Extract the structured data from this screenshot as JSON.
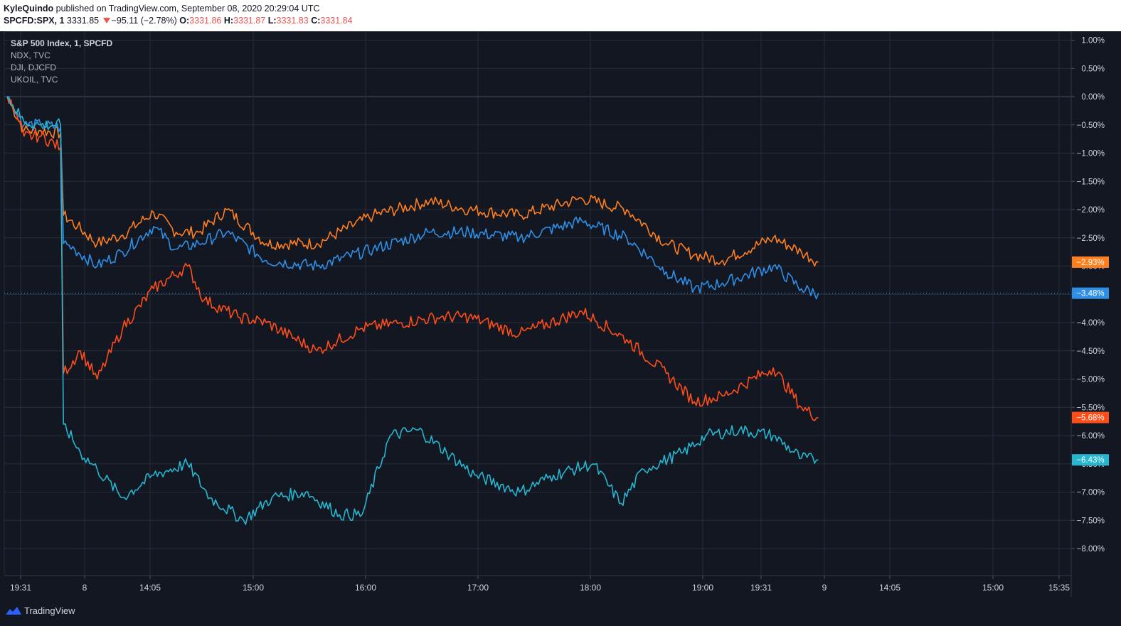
{
  "header": {
    "author": "KyleQuindo",
    "published_text": "published on TradingView.com, September 08, 2020 20:29:04 UTC",
    "symbol": "SPCFD:SPX, 1",
    "last": "3331.85",
    "change": "−95.11 (−2.78%)",
    "o_label": "O:",
    "o_value": "3331.86",
    "h_label": "H:",
    "h_value": "3331.87",
    "l_label": "L:",
    "l_value": "3331.83",
    "c_label": "C:",
    "c_value": "3331.84"
  },
  "legend": [
    "S&P 500 Index, 1, SPCFD",
    "NDX, TVC",
    "DJI, DJCFD",
    "UKOIL, TVC"
  ],
  "footer": {
    "brand": "TradingView"
  },
  "colors": {
    "background": "#131722",
    "grid": "#2a2e39",
    "axis_text": "#d1d4dc",
    "spx": "#2f8fe6",
    "ndx": "#ff7f1f",
    "dji": "#ff4d1a",
    "ukoil": "#26b6cf"
  },
  "chart_data": {
    "type": "line",
    "title": "S&P 500 Index, 1, SPCFD",
    "x_ticks": [
      "19:31",
      "8",
      "14:05",
      "15:00",
      "16:00",
      "17:00",
      "18:00",
      "19:00",
      "19:31",
      "9",
      "14:05",
      "15:00",
      "15:35"
    ],
    "y_ticks": [
      "1.00%",
      "0.50%",
      "0.00%",
      "−0.50%",
      "−1.00%",
      "−1.50%",
      "−2.00%",
      "−2.50%",
      "−3.00%",
      "−3.50%",
      "−4.00%",
      "−4.50%",
      "−5.00%",
      "−5.50%",
      "−6.00%",
      "−6.50%",
      "−7.00%",
      "−7.50%",
      "−8.00%"
    ],
    "ylim": [
      -8.35,
      1.3
    ],
    "grid": true,
    "series": [
      {
        "name": "NDX, TVC",
        "color_key": "ndx",
        "last_label": "−2.93%",
        "points": [
          [
            0,
            0
          ],
          [
            0.1,
            -0.2
          ],
          [
            0.3,
            -0.6
          ],
          [
            0.6,
            -0.6
          ],
          [
            0.95,
            -0.65
          ],
          [
            1.0,
            -2.1
          ],
          [
            1.25,
            -2.3
          ],
          [
            1.6,
            -2.6
          ],
          [
            2.05,
            -2.45
          ],
          [
            2.6,
            -2.05
          ],
          [
            3.0,
            -2.4
          ],
          [
            3.4,
            -2.4
          ],
          [
            3.9,
            -2.0
          ],
          [
            4.6,
            -2.6
          ],
          [
            5.5,
            -2.6
          ],
          [
            6.5,
            -2.1
          ],
          [
            7.5,
            -1.85
          ],
          [
            8.2,
            -2.0
          ],
          [
            9.1,
            -2.1
          ],
          [
            10.2,
            -1.8
          ],
          [
            11.0,
            -2.0
          ],
          [
            11.7,
            -2.6
          ],
          [
            12.2,
            -2.8
          ],
          [
            12.7,
            -2.9
          ],
          [
            13.6,
            -2.5
          ],
          [
            14.1,
            -2.75
          ],
          [
            14.4,
            -2.93
          ]
        ]
      },
      {
        "name": "S&P 500 Index, 1, SPCFD",
        "color_key": "spx",
        "last_label": "−3.48%",
        "points": [
          [
            0,
            0
          ],
          [
            0.1,
            -0.15
          ],
          [
            0.3,
            -0.5
          ],
          [
            0.6,
            -0.5
          ],
          [
            0.95,
            -0.55
          ],
          [
            1.0,
            -2.6
          ],
          [
            1.2,
            -2.7
          ],
          [
            1.6,
            -3.0
          ],
          [
            2.05,
            -2.75
          ],
          [
            2.6,
            -2.3
          ],
          [
            3.0,
            -2.7
          ],
          [
            3.4,
            -2.6
          ],
          [
            3.9,
            -2.4
          ],
          [
            4.6,
            -2.9
          ],
          [
            5.5,
            -3.0
          ],
          [
            6.5,
            -2.7
          ],
          [
            7.5,
            -2.4
          ],
          [
            8.2,
            -2.4
          ],
          [
            9.1,
            -2.5
          ],
          [
            10.2,
            -2.2
          ],
          [
            11.0,
            -2.5
          ],
          [
            11.7,
            -3.1
          ],
          [
            12.2,
            -3.4
          ],
          [
            12.7,
            -3.3
          ],
          [
            13.6,
            -3.0
          ],
          [
            14.1,
            -3.4
          ],
          [
            14.4,
            -3.48
          ]
        ]
      },
      {
        "name": "DJI, DJCFD",
        "color_key": "dji",
        "last_label": "−5.68%",
        "points": [
          [
            0,
            0
          ],
          [
            0.1,
            -0.2
          ],
          [
            0.3,
            -0.7
          ],
          [
            0.6,
            -0.7
          ],
          [
            0.95,
            -0.9
          ],
          [
            1.0,
            -4.9
          ],
          [
            1.3,
            -4.5
          ],
          [
            1.6,
            -5.0
          ],
          [
            2.05,
            -4.1
          ],
          [
            2.6,
            -3.4
          ],
          [
            3.2,
            -3.0
          ],
          [
            3.5,
            -3.6
          ],
          [
            4.1,
            -3.9
          ],
          [
            4.6,
            -4.0
          ],
          [
            5.5,
            -4.5
          ],
          [
            6.3,
            -4.1
          ],
          [
            7.0,
            -4.0
          ],
          [
            7.7,
            -3.9
          ],
          [
            8.2,
            -3.9
          ],
          [
            9.1,
            -4.2
          ],
          [
            10.2,
            -3.8
          ],
          [
            11.0,
            -4.3
          ],
          [
            11.7,
            -4.9
          ],
          [
            12.2,
            -5.4
          ],
          [
            12.7,
            -5.3
          ],
          [
            13.6,
            -4.8
          ],
          [
            14.1,
            -5.5
          ],
          [
            14.4,
            -5.68
          ]
        ]
      },
      {
        "name": "UKOIL, TVC",
        "color_key": "ukoil",
        "last_label": "−6.43%",
        "points": [
          [
            0,
            0
          ],
          [
            0.1,
            -0.15
          ],
          [
            0.3,
            -0.45
          ],
          [
            0.6,
            -0.5
          ],
          [
            0.95,
            -0.5
          ],
          [
            1.0,
            -5.8
          ],
          [
            1.3,
            -6.3
          ],
          [
            1.6,
            -6.6
          ],
          [
            2.05,
            -7.1
          ],
          [
            2.6,
            -6.7
          ],
          [
            3.2,
            -6.5
          ],
          [
            3.6,
            -7.1
          ],
          [
            4.2,
            -7.5
          ],
          [
            4.7,
            -7.1
          ],
          [
            5.3,
            -7.0
          ],
          [
            5.9,
            -7.4
          ],
          [
            6.3,
            -7.4
          ],
          [
            6.8,
            -6.0
          ],
          [
            7.3,
            -5.9
          ],
          [
            7.8,
            -6.3
          ],
          [
            8.3,
            -6.7
          ],
          [
            9.1,
            -7.0
          ],
          [
            9.7,
            -6.7
          ],
          [
            10.4,
            -6.5
          ],
          [
            10.9,
            -7.2
          ],
          [
            11.3,
            -6.6
          ],
          [
            12.0,
            -6.3
          ],
          [
            12.4,
            -6.0
          ],
          [
            13.0,
            -5.9
          ],
          [
            13.6,
            -6.0
          ],
          [
            14.1,
            -6.4
          ],
          [
            14.4,
            -6.43
          ]
        ]
      }
    ]
  }
}
